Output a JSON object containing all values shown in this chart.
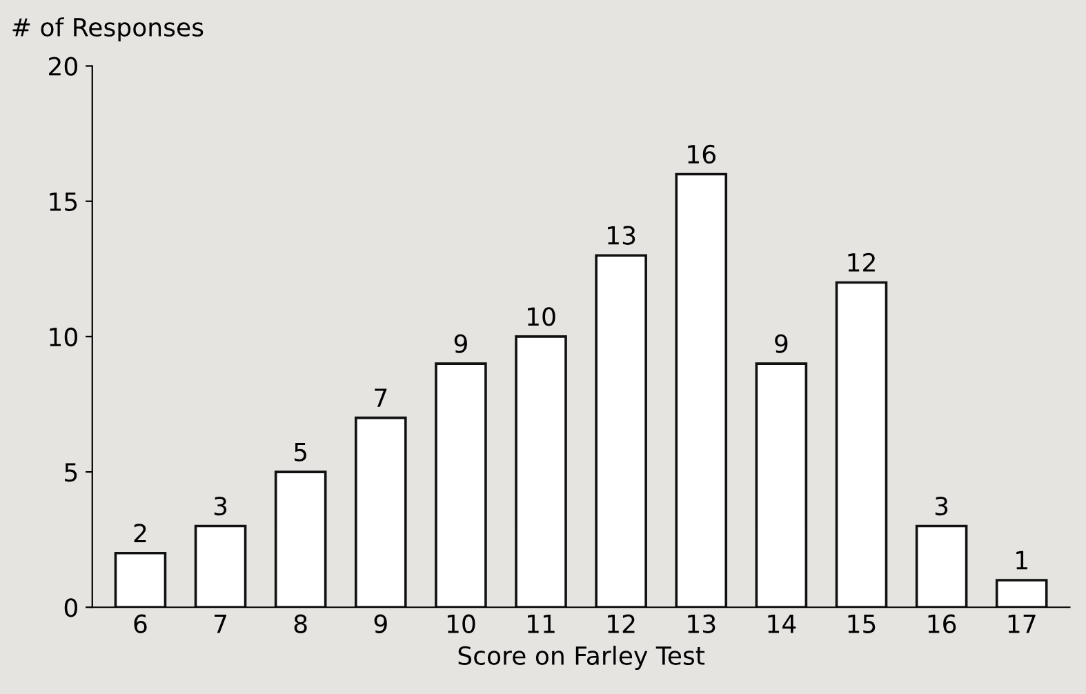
{
  "chart_data": {
    "type": "bar",
    "xlabel": "Score on Farley Test",
    "ylabel": "# of Responses",
    "categories": [
      "6",
      "7",
      "8",
      "9",
      "10",
      "11",
      "12",
      "13",
      "14",
      "15",
      "16",
      "17"
    ],
    "values": [
      2,
      3,
      5,
      7,
      9,
      10,
      13,
      16,
      9,
      12,
      3,
      1
    ],
    "color": "#ffffff",
    "ylim": [
      0,
      20
    ],
    "yticks": [
      0,
      5,
      10,
      15,
      20
    ],
    "data_labels": true,
    "grid": false
  }
}
